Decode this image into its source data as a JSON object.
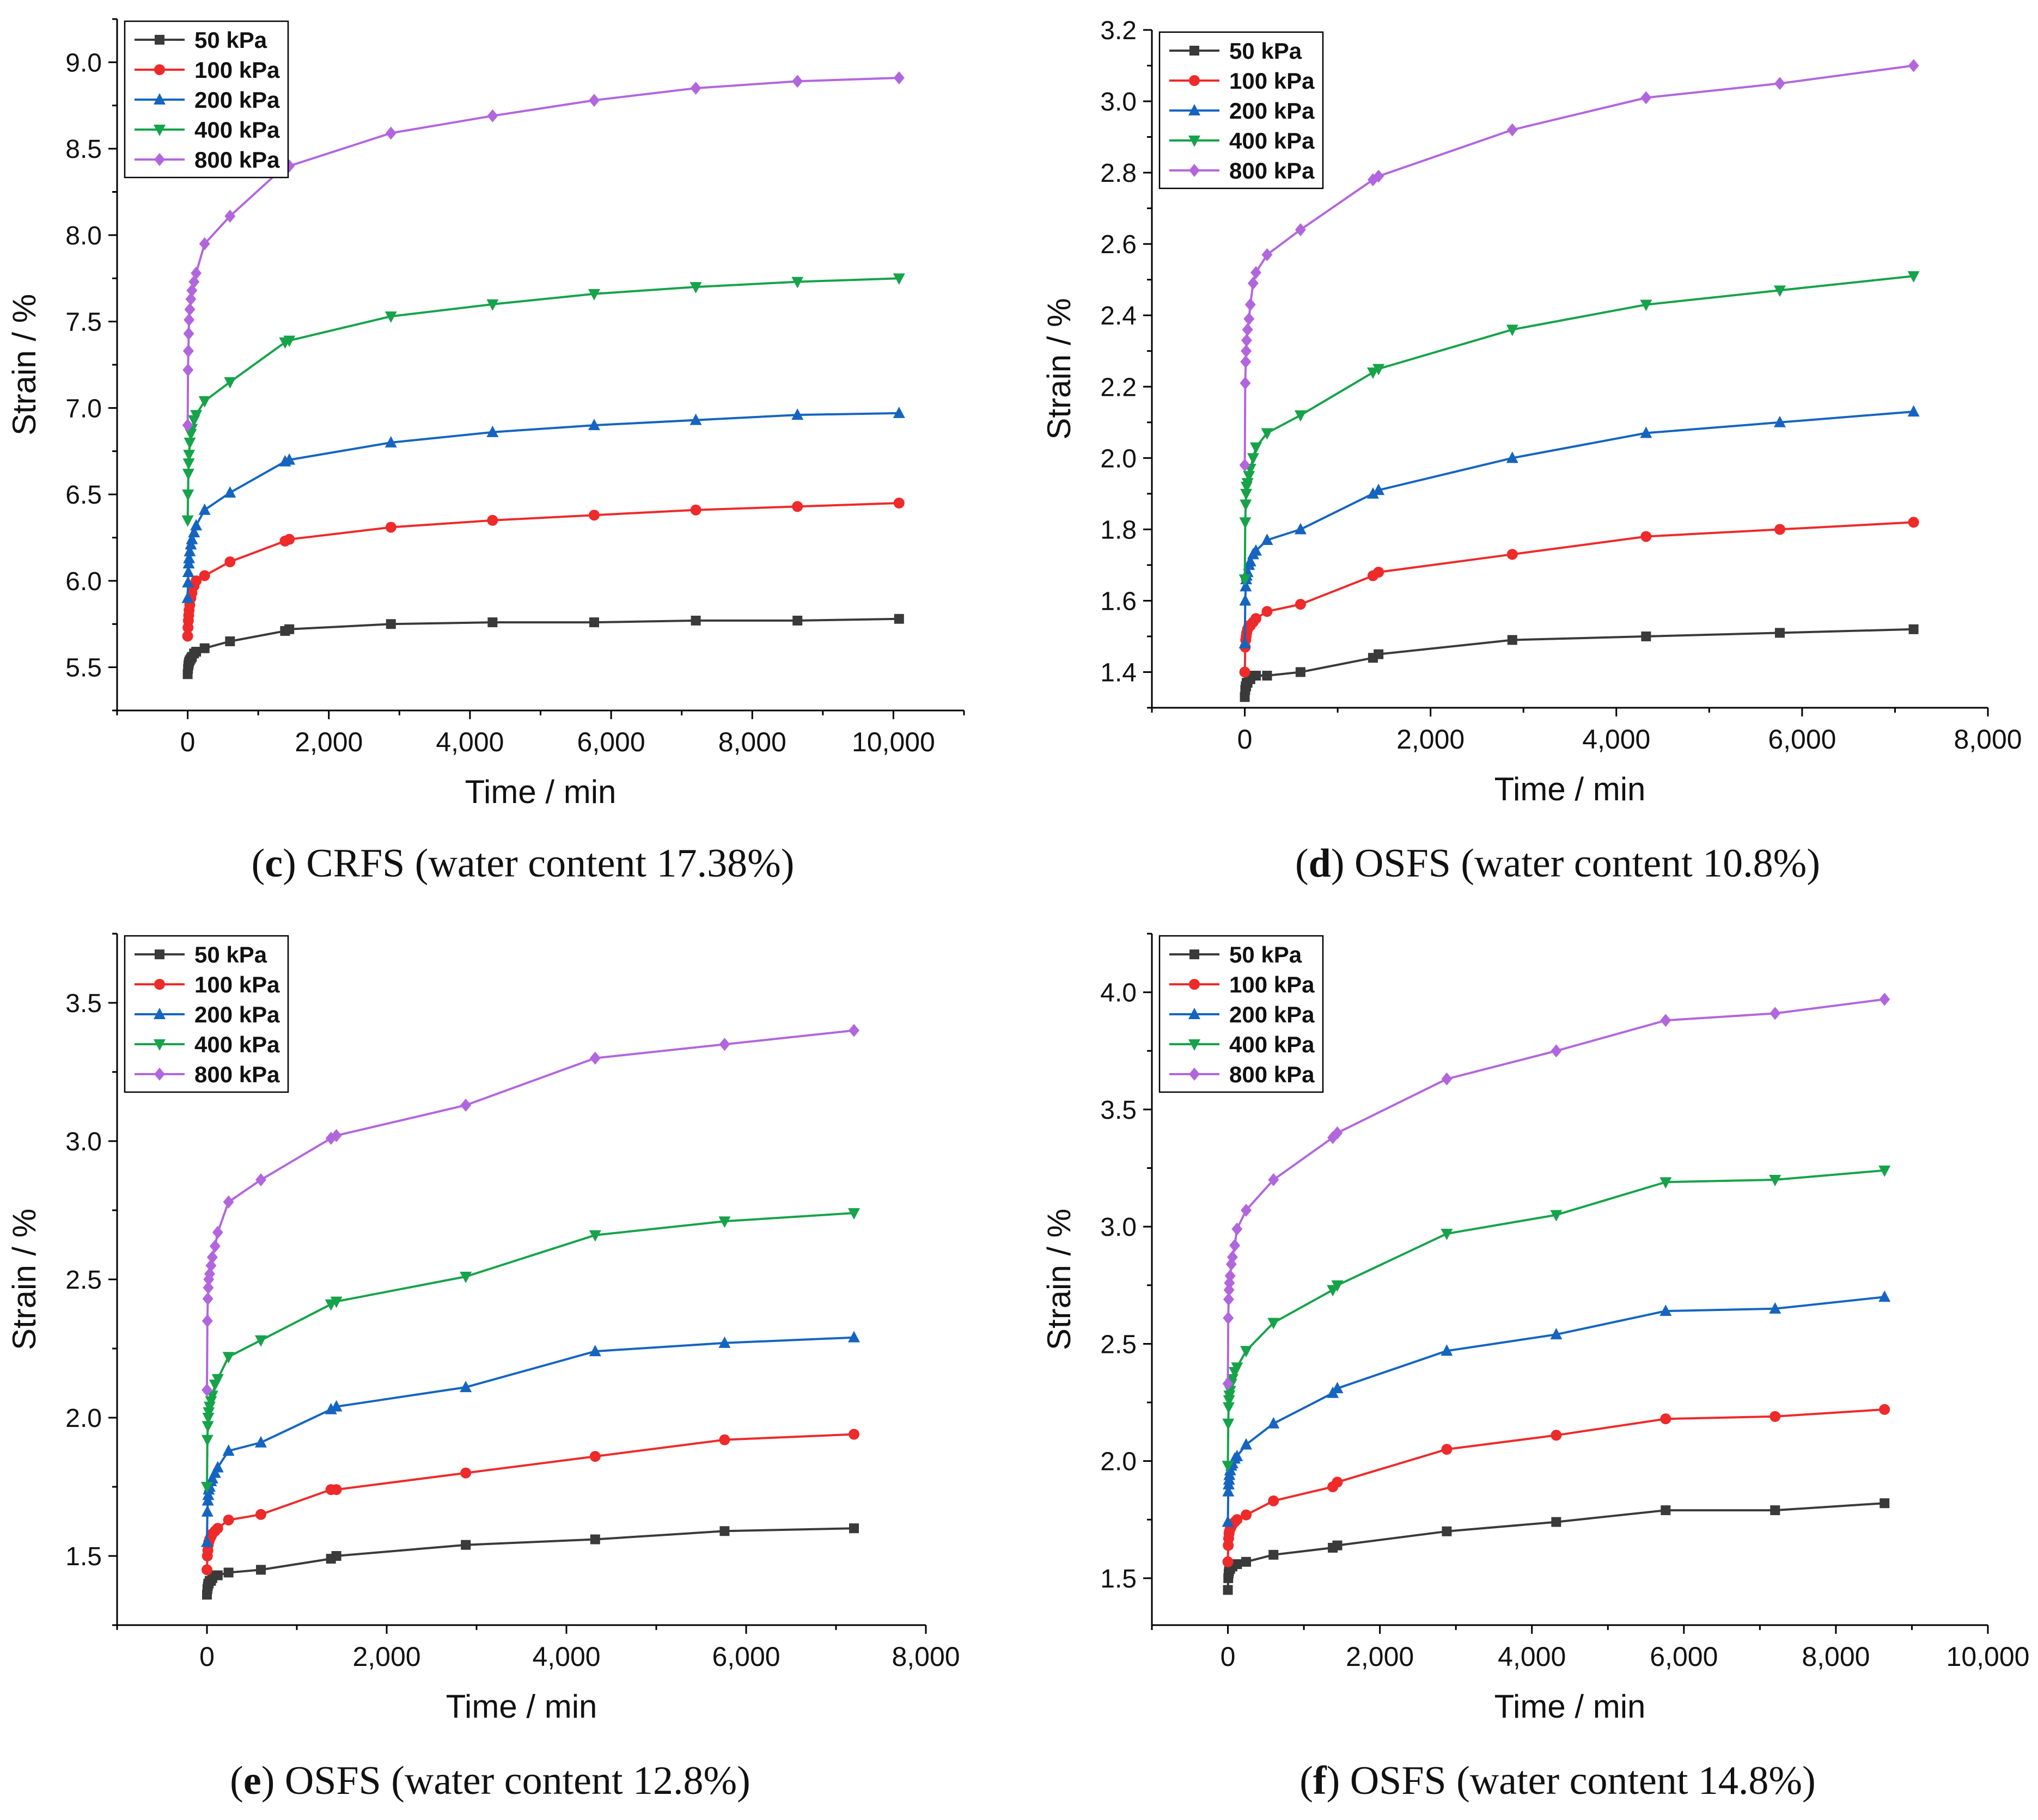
{
  "colors": {
    "50 kPa": "#3a3a3a",
    "100 kPa": "#ee2a2a",
    "200 kPa": "#1565c0",
    "400 kPa": "#16a34a",
    "800 kPa": "#b266dd"
  },
  "chart_data": [
    {
      "id": "c",
      "type": "line",
      "caption": {
        "label": "c",
        "text": " CRFS (water content 17.38%)"
      },
      "xlabel": "Time / min",
      "ylabel": "Strain / %",
      "xlim": [
        -1000,
        11000
      ],
      "ylim": [
        5.25,
        9.25
      ],
      "xticks": [
        {
          "v": 0,
          "label": "0"
        },
        {
          "v": 2000,
          "label": "2,000"
        },
        {
          "v": 4000,
          "label": "4,000"
        },
        {
          "v": 6000,
          "label": "6,000"
        },
        {
          "v": 8000,
          "label": "8,000"
        },
        {
          "v": 10000,
          "label": "10,000"
        }
      ],
      "yticks": [
        {
          "v": 5.5,
          "label": "5.5"
        },
        {
          "v": 6.0,
          "label": "6.0"
        },
        {
          "v": 6.5,
          "label": "6.5"
        },
        {
          "v": 7.0,
          "label": "7.0"
        },
        {
          "v": 7.5,
          "label": "7.5"
        },
        {
          "v": 8.0,
          "label": "8.0"
        },
        {
          "v": 8.5,
          "label": "8.5"
        },
        {
          "v": 9.0,
          "label": "9.0"
        }
      ],
      "legend": {
        "position": "top-left",
        "entries": [
          "50 kPa",
          "100 kPa",
          "200 kPa",
          "400 kPa",
          "800 kPa"
        ]
      },
      "x": [
        0,
        5,
        10,
        15,
        20,
        30,
        45,
        60,
        90,
        120,
        240,
        600,
        1380,
        1440,
        2880,
        4320,
        5760,
        7200,
        8640,
        10080
      ],
      "series": [
        {
          "name": "50 kPa",
          "marker": "square",
          "values": [
            5.46,
            5.49,
            5.51,
            5.52,
            5.53,
            5.54,
            5.55,
            5.56,
            5.58,
            5.59,
            5.61,
            5.65,
            5.71,
            5.72,
            5.75,
            5.76,
            5.76,
            5.77,
            5.77,
            5.78
          ]
        },
        {
          "name": "100 kPa",
          "marker": "circle",
          "values": [
            5.68,
            5.73,
            5.77,
            5.8,
            5.83,
            5.86,
            5.9,
            5.93,
            5.97,
            6.0,
            6.03,
            6.11,
            6.23,
            6.24,
            6.31,
            6.35,
            6.38,
            6.41,
            6.43,
            6.45
          ]
        },
        {
          "name": "200 kPa",
          "marker": "triangle-up",
          "values": [
            5.9,
            5.99,
            6.05,
            6.1,
            6.13,
            6.17,
            6.21,
            6.24,
            6.28,
            6.32,
            6.41,
            6.51,
            6.69,
            6.7,
            6.8,
            6.86,
            6.9,
            6.93,
            6.96,
            6.97
          ]
        },
        {
          "name": "400 kPa",
          "marker": "triangle-down",
          "values": [
            6.35,
            6.5,
            6.62,
            6.68,
            6.73,
            6.8,
            6.85,
            6.88,
            6.93,
            6.96,
            7.04,
            7.15,
            7.38,
            7.39,
            7.53,
            7.6,
            7.66,
            7.7,
            7.73,
            7.75
          ]
        },
        {
          "name": "800 kPa",
          "marker": "diamond",
          "values": [
            6.9,
            7.22,
            7.33,
            7.43,
            7.51,
            7.57,
            7.63,
            7.68,
            7.73,
            7.78,
            7.95,
            8.11,
            8.4,
            8.4,
            8.59,
            8.69,
            8.78,
            8.85,
            8.89,
            8.91
          ]
        }
      ]
    },
    {
      "id": "d",
      "type": "line",
      "caption": {
        "label": "d",
        "text": " OSFS (water content 10.8%)"
      },
      "xlabel": "Time / min",
      "ylabel": "Strain / %",
      "xlim": [
        -1000,
        8000
      ],
      "ylim": [
        1.3,
        3.2
      ],
      "xticks": [
        {
          "v": 0,
          "label": "0"
        },
        {
          "v": 2000,
          "label": "2,000"
        },
        {
          "v": 4000,
          "label": "4,000"
        },
        {
          "v": 6000,
          "label": "6,000"
        },
        {
          "v": 8000,
          "label": "8,000"
        }
      ],
      "yticks": [
        {
          "v": 1.4,
          "label": "1.4"
        },
        {
          "v": 1.6,
          "label": "1.6"
        },
        {
          "v": 1.8,
          "label": "1.8"
        },
        {
          "v": 2.0,
          "label": "2.0"
        },
        {
          "v": 2.2,
          "label": "2.2"
        },
        {
          "v": 2.4,
          "label": "2.4"
        },
        {
          "v": 2.6,
          "label": "2.6"
        },
        {
          "v": 2.8,
          "label": "2.8"
        },
        {
          "v": 3.0,
          "label": "3.0"
        },
        {
          "v": 3.2,
          "label": "3.2"
        }
      ],
      "legend": {
        "position": "top-left",
        "entries": [
          "50 kPa",
          "100 kPa",
          "200 kPa",
          "400 kPa",
          "800 kPa"
        ]
      },
      "x": [
        0,
        5,
        10,
        15,
        20,
        30,
        45,
        60,
        90,
        120,
        240,
        600,
        1380,
        1440,
        2880,
        4320,
        5760,
        7200
      ],
      "series": [
        {
          "name": "50 kPa",
          "marker": "square",
          "values": [
            1.33,
            1.35,
            1.36,
            1.36,
            1.37,
            1.37,
            1.38,
            1.38,
            1.39,
            1.39,
            1.39,
            1.4,
            1.44,
            1.45,
            1.49,
            1.5,
            1.51,
            1.52
          ]
        },
        {
          "name": "100 kPa",
          "marker": "circle",
          "values": [
            1.4,
            1.47,
            1.49,
            1.5,
            1.51,
            1.52,
            1.53,
            1.53,
            1.54,
            1.55,
            1.57,
            1.59,
            1.67,
            1.68,
            1.73,
            1.78,
            1.8,
            1.82
          ]
        },
        {
          "name": "200 kPa",
          "marker": "triangle-up",
          "values": [
            1.48,
            1.6,
            1.64,
            1.66,
            1.67,
            1.68,
            1.7,
            1.71,
            1.73,
            1.74,
            1.77,
            1.8,
            1.9,
            1.91,
            2.0,
            2.07,
            2.1,
            2.13
          ]
        },
        {
          "name": "400 kPa",
          "marker": "triangle-down",
          "values": [
            1.66,
            1.82,
            1.87,
            1.9,
            1.92,
            1.93,
            1.95,
            1.97,
            2.0,
            2.03,
            2.07,
            2.12,
            2.24,
            2.25,
            2.36,
            2.43,
            2.47,
            2.51
          ]
        },
        {
          "name": "800 kPa",
          "marker": "diamond",
          "values": [
            1.98,
            2.21,
            2.27,
            2.3,
            2.33,
            2.36,
            2.39,
            2.43,
            2.49,
            2.52,
            2.57,
            2.64,
            2.78,
            2.79,
            2.92,
            3.01,
            3.05,
            3.1
          ]
        }
      ]
    },
    {
      "id": "e",
      "type": "line",
      "caption": {
        "label": "e",
        "text": " OSFS (water content 12.8%)"
      },
      "xlabel": "Time / min",
      "ylabel": "Strain / %",
      "xlim": [
        -1000,
        8000
      ],
      "ylim": [
        1.25,
        3.75
      ],
      "xticks": [
        {
          "v": 0,
          "label": "0"
        },
        {
          "v": 2000,
          "label": "2,000"
        },
        {
          "v": 4000,
          "label": "4,000"
        },
        {
          "v": 6000,
          "label": "6,000"
        },
        {
          "v": 8000,
          "label": "8,000"
        }
      ],
      "yticks": [
        {
          "v": 1.5,
          "label": "1.5"
        },
        {
          "v": 2.0,
          "label": "2.0"
        },
        {
          "v": 2.5,
          "label": "2.5"
        },
        {
          "v": 3.0,
          "label": "3.0"
        },
        {
          "v": 3.5,
          "label": "3.5"
        }
      ],
      "legend": {
        "position": "top-left",
        "entries": [
          "50 kPa",
          "100 kPa",
          "200 kPa",
          "400 kPa",
          "800 kPa"
        ]
      },
      "x": [
        0,
        5,
        10,
        15,
        20,
        30,
        45,
        60,
        90,
        120,
        240,
        600,
        1380,
        1440,
        2880,
        4320,
        5760,
        7200
      ],
      "series": [
        {
          "name": "50 kPa",
          "marker": "square",
          "values": [
            1.36,
            1.38,
            1.39,
            1.4,
            1.4,
            1.41,
            1.41,
            1.42,
            1.43,
            1.43,
            1.44,
            1.45,
            1.49,
            1.5,
            1.54,
            1.56,
            1.59,
            1.6
          ]
        },
        {
          "name": "100 kPa",
          "marker": "circle",
          "values": [
            1.45,
            1.5,
            1.52,
            1.54,
            1.55,
            1.56,
            1.57,
            1.58,
            1.59,
            1.6,
            1.63,
            1.65,
            1.74,
            1.74,
            1.8,
            1.86,
            1.92,
            1.94
          ]
        },
        {
          "name": "200 kPa",
          "marker": "triangle-up",
          "values": [
            1.55,
            1.66,
            1.7,
            1.72,
            1.74,
            1.75,
            1.77,
            1.78,
            1.8,
            1.82,
            1.88,
            1.91,
            2.03,
            2.04,
            2.11,
            2.24,
            2.27,
            2.29
          ]
        },
        {
          "name": "400 kPa",
          "marker": "triangle-down",
          "values": [
            1.75,
            1.92,
            1.97,
            2.0,
            2.02,
            2.04,
            2.06,
            2.08,
            2.12,
            2.14,
            2.22,
            2.28,
            2.41,
            2.42,
            2.51,
            2.66,
            2.71,
            2.74
          ]
        },
        {
          "name": "800 kPa",
          "marker": "diamond",
          "values": [
            2.1,
            2.35,
            2.43,
            2.47,
            2.5,
            2.52,
            2.55,
            2.58,
            2.62,
            2.67,
            2.78,
            2.86,
            3.01,
            3.02,
            3.13,
            3.3,
            3.35,
            3.4
          ]
        }
      ]
    },
    {
      "id": "f",
      "type": "line",
      "caption": {
        "label": "f",
        "text": " OSFS (water content 14.8%)"
      },
      "xlabel": "Time / min",
      "ylabel": "Strain / %",
      "xlim": [
        -1000,
        10000
      ],
      "ylim": [
        1.3,
        4.25
      ],
      "xticks": [
        {
          "v": 0,
          "label": "0"
        },
        {
          "v": 2000,
          "label": "2,000"
        },
        {
          "v": 4000,
          "label": "4,000"
        },
        {
          "v": 6000,
          "label": "6,000"
        },
        {
          "v": 8000,
          "label": "8,000"
        },
        {
          "v": 10000,
          "label": "10,000"
        }
      ],
      "yticks": [
        {
          "v": 1.5,
          "label": "1.5"
        },
        {
          "v": 2.0,
          "label": "2.0"
        },
        {
          "v": 2.5,
          "label": "2.5"
        },
        {
          "v": 3.0,
          "label": "3.0"
        },
        {
          "v": 3.5,
          "label": "3.5"
        },
        {
          "v": 4.0,
          "label": "4.0"
        }
      ],
      "legend": {
        "position": "top-left",
        "entries": [
          "50 kPa",
          "100 kPa",
          "200 kPa",
          "400 kPa",
          "800 kPa"
        ]
      },
      "x": [
        0,
        5,
        10,
        15,
        20,
        30,
        45,
        60,
        90,
        120,
        240,
        600,
        1380,
        1440,
        2880,
        4320,
        5760,
        7200,
        8640
      ],
      "series": [
        {
          "name": "50 kPa",
          "marker": "square",
          "values": [
            1.45,
            1.5,
            1.52,
            1.53,
            1.54,
            1.54,
            1.55,
            1.55,
            1.56,
            1.56,
            1.57,
            1.6,
            1.63,
            1.64,
            1.7,
            1.74,
            1.79,
            1.79,
            1.82
          ]
        },
        {
          "name": "100 kPa",
          "marker": "circle",
          "values": [
            1.57,
            1.64,
            1.67,
            1.69,
            1.7,
            1.71,
            1.72,
            1.73,
            1.74,
            1.75,
            1.77,
            1.83,
            1.89,
            1.91,
            2.05,
            2.11,
            2.18,
            2.19,
            2.22
          ]
        },
        {
          "name": "200 kPa",
          "marker": "triangle-up",
          "values": [
            1.74,
            1.87,
            1.9,
            1.92,
            1.94,
            1.96,
            1.98,
            1.99,
            2.01,
            2.02,
            2.07,
            2.16,
            2.29,
            2.31,
            2.47,
            2.54,
            2.64,
            2.65,
            2.7
          ]
        },
        {
          "name": "400 kPa",
          "marker": "triangle-down",
          "values": [
            1.98,
            2.16,
            2.23,
            2.26,
            2.28,
            2.3,
            2.33,
            2.35,
            2.38,
            2.4,
            2.47,
            2.59,
            2.73,
            2.75,
            2.97,
            3.05,
            3.19,
            3.2,
            3.24
          ]
        },
        {
          "name": "800 kPa",
          "marker": "diamond",
          "values": [
            2.33,
            2.61,
            2.69,
            2.73,
            2.76,
            2.79,
            2.84,
            2.87,
            2.92,
            2.99,
            3.07,
            3.2,
            3.38,
            3.4,
            3.63,
            3.75,
            3.88,
            3.91,
            3.97
          ]
        }
      ]
    }
  ]
}
